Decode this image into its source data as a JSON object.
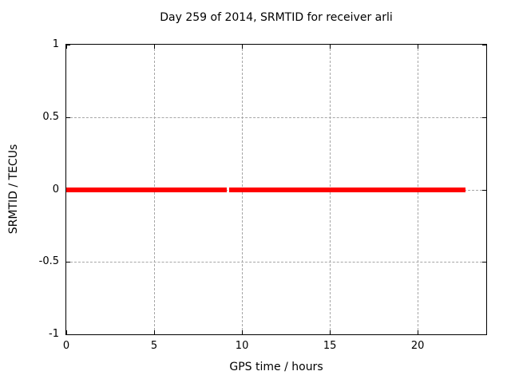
{
  "chart_data": {
    "type": "line",
    "title": "Day 259 of 2014, SRMTID for receiver arli",
    "xlabel": "GPS time / hours",
    "ylabel": "SRMTID / TECUs",
    "xlim": [
      0,
      23.9
    ],
    "ylim": [
      -1,
      1
    ],
    "xticks": [
      {
        "value": 0,
        "label": "0"
      },
      {
        "value": 5,
        "label": "5"
      },
      {
        "value": 10,
        "label": "10"
      },
      {
        "value": 15,
        "label": "15"
      },
      {
        "value": 20,
        "label": "20"
      }
    ],
    "yticks": [
      {
        "value": 1,
        "label": "1"
      },
      {
        "value": 0.5,
        "label": "0.5"
      },
      {
        "value": 0,
        "label": "0"
      },
      {
        "value": -0.5,
        "label": "-0.5"
      },
      {
        "value": -1,
        "label": "-1"
      }
    ],
    "grid": true,
    "legend": "none",
    "series": [
      {
        "name": "SRMTID",
        "color": "#ff0000",
        "linewidth": 6,
        "segments": [
          {
            "x": [
              0.02,
              9.14
            ],
            "y": 0
          },
          {
            "x": [
              9.29,
              22.7
            ],
            "y": 0
          }
        ]
      }
    ]
  },
  "colors": {
    "series": "#ff0000",
    "grid": "#a6a6a6",
    "border": "#000000",
    "background": "#ffffff",
    "text": "#000000"
  }
}
